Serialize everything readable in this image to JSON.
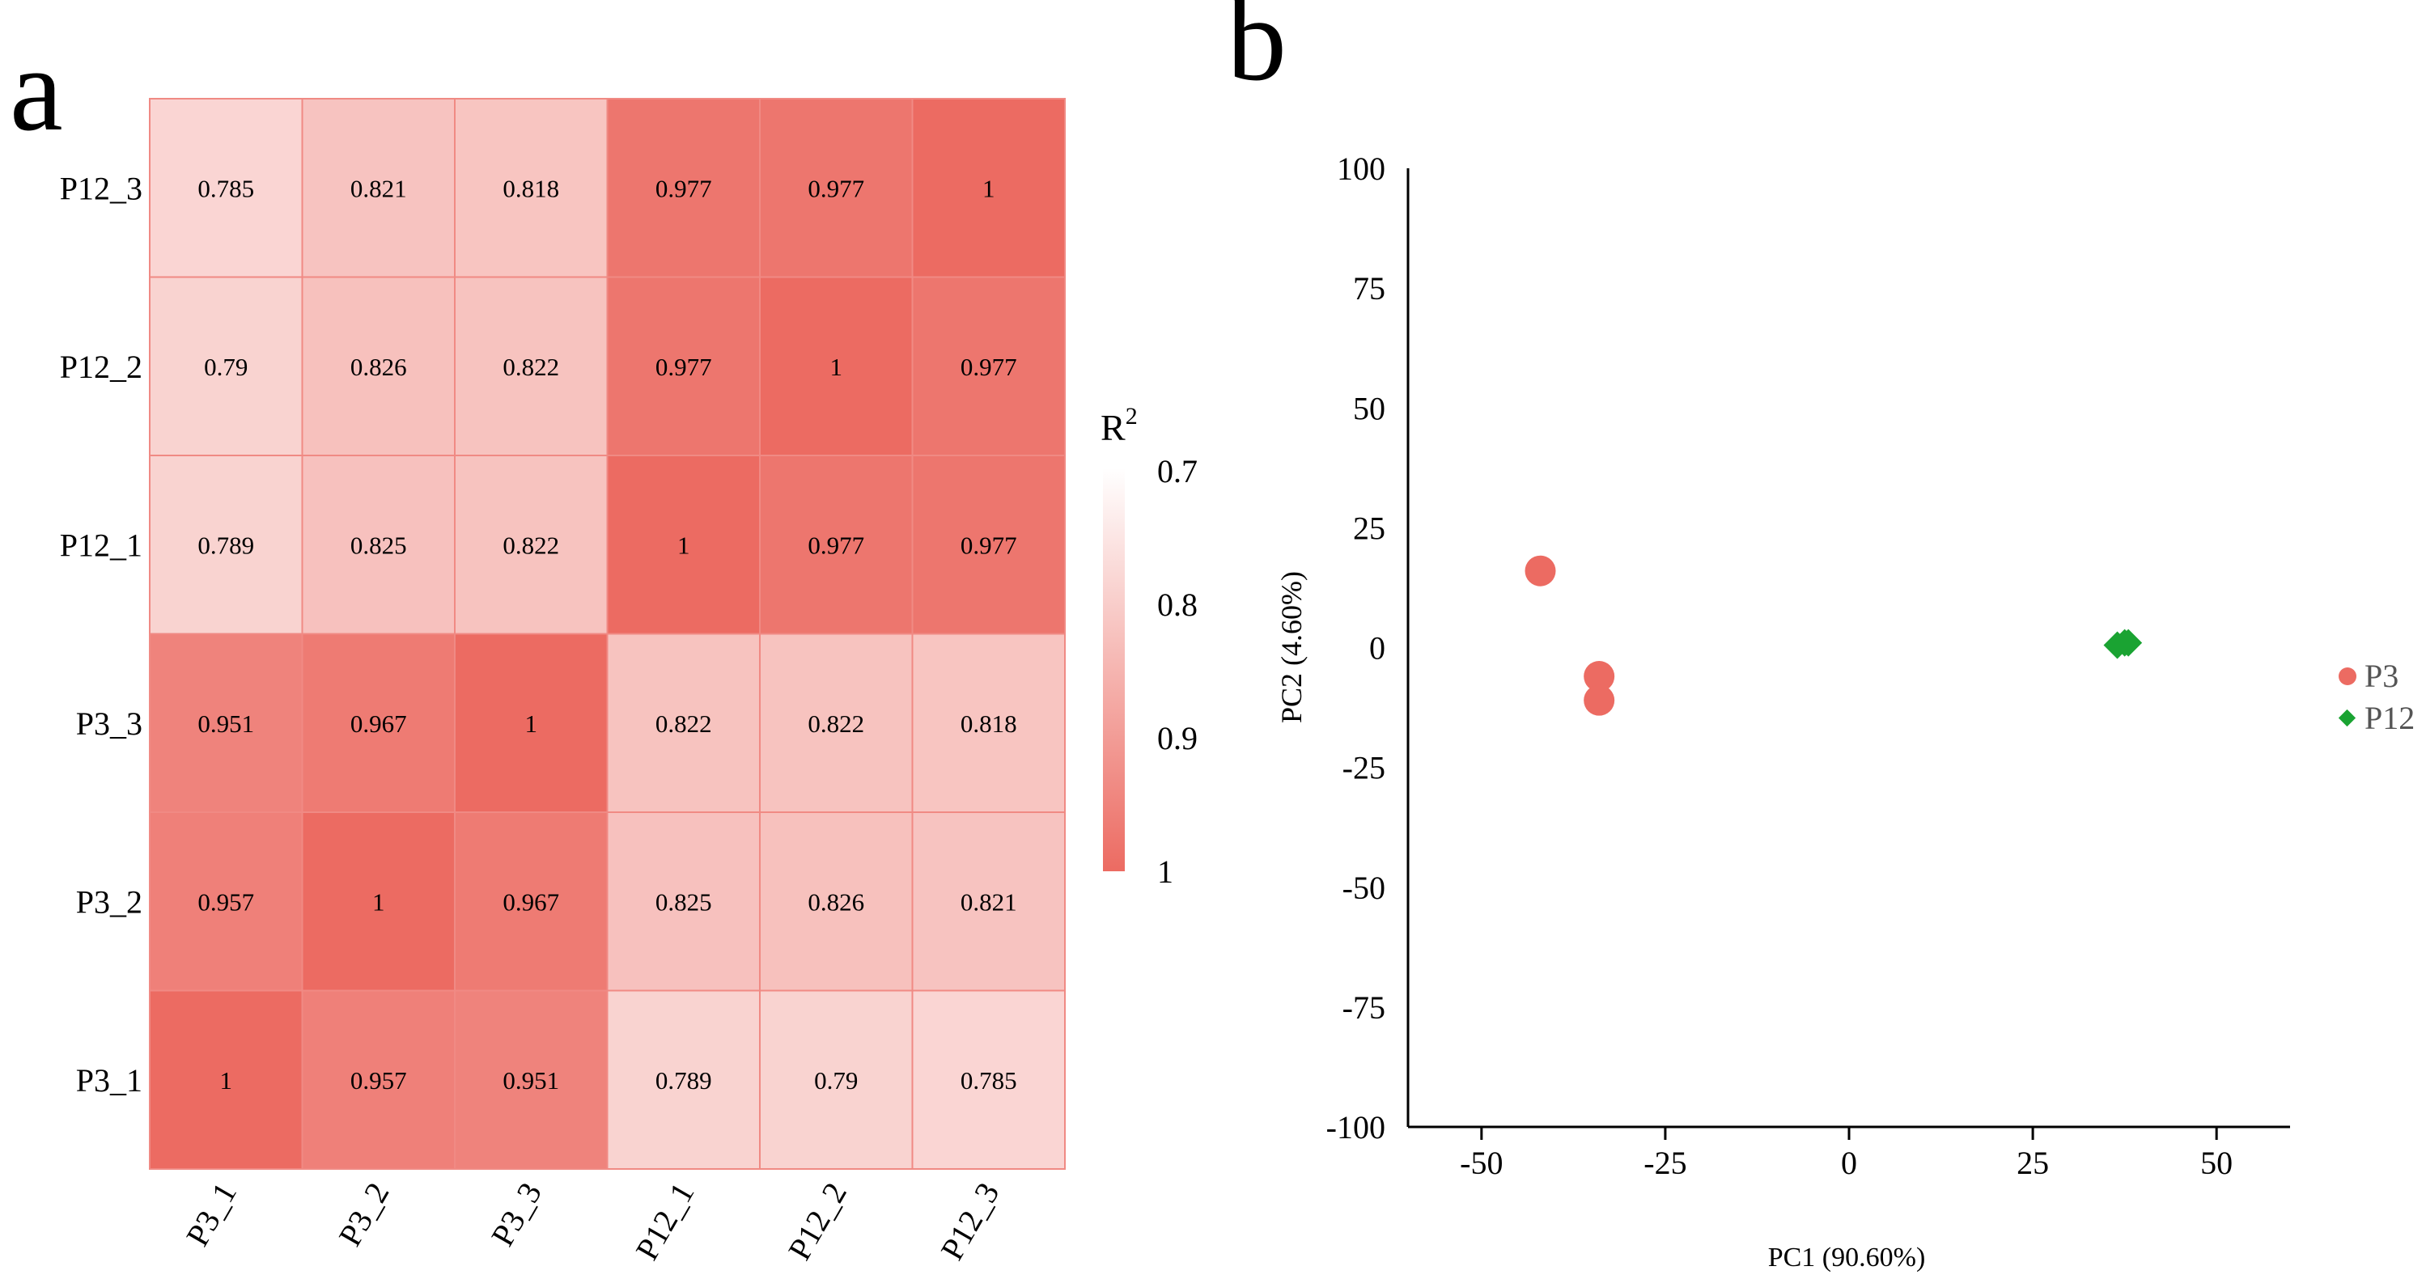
{
  "panels": {
    "a_label": "a",
    "b_label": "b"
  },
  "colors": {
    "low": "#ffffff",
    "high": "#ec6b62",
    "grid": "#f08a84",
    "p3": "#ec6b62",
    "p12": "#1aa332",
    "axis": "#000000"
  },
  "chart_data": [
    {
      "type": "heatmap",
      "title": "",
      "rows": [
        "P12_3",
        "P12_2",
        "P12_1",
        "P3_3",
        "P3_2",
        "P3_1"
      ],
      "cols": [
        "P3_1",
        "P3_2",
        "P3_3",
        "P12_1",
        "P12_2",
        "P12_3"
      ],
      "values": [
        [
          0.785,
          0.821,
          0.818,
          0.977,
          0.977,
          1
        ],
        [
          0.79,
          0.826,
          0.822,
          0.977,
          1,
          0.977
        ],
        [
          0.789,
          0.825,
          0.822,
          1,
          0.977,
          0.977
        ],
        [
          0.951,
          0.967,
          1,
          0.822,
          0.822,
          0.818
        ],
        [
          0.957,
          1,
          0.967,
          0.825,
          0.826,
          0.821
        ],
        [
          1,
          0.957,
          0.951,
          0.789,
          0.79,
          0.785
        ]
      ],
      "value_labels": [
        [
          "0.785",
          "0.821",
          "0.818",
          "0.977",
          "0.977",
          "1"
        ],
        [
          "0.79",
          "0.826",
          "0.822",
          "0.977",
          "1",
          "0.977"
        ],
        [
          "0.789",
          "0.825",
          "0.822",
          "1",
          "0.977",
          "0.977"
        ],
        [
          "0.951",
          "0.967",
          "1",
          "0.822",
          "0.822",
          "0.818"
        ],
        [
          "0.957",
          "1",
          "0.967",
          "0.825",
          "0.826",
          "0.821"
        ],
        [
          "1",
          "0.957",
          "0.951",
          "0.789",
          "0.79",
          "0.785"
        ]
      ],
      "colorbar": {
        "title_base": "R",
        "title_sup": "2",
        "range": [
          0.7,
          1
        ],
        "ticks": [
          0.7,
          0.8,
          0.9,
          1
        ],
        "tick_labels": [
          "0.7",
          "0.8",
          "0.9",
          "1"
        ]
      }
    },
    {
      "type": "scatter",
      "title": "",
      "xlabel": "PC1 (90.60%)",
      "ylabel": "PC2 (4.60%)",
      "xlim": [
        -60,
        60
      ],
      "ylim": [
        -100,
        100
      ],
      "xticks": [
        -50,
        -25,
        0,
        25,
        50
      ],
      "xtick_labels": [
        "-50",
        "-25",
        "0",
        "25",
        "50"
      ],
      "yticks": [
        100,
        75,
        50,
        25,
        0,
        -25,
        -50,
        -75,
        -100
      ],
      "ytick_labels": [
        "100",
        "75",
        "50",
        "25",
        "0",
        "-25",
        "-50",
        "-75",
        "-100"
      ],
      "series": [
        {
          "name": "P3",
          "marker": "circle",
          "points": [
            {
              "x": -42,
              "y": 16
            },
            {
              "x": -34,
              "y": -6
            },
            {
              "x": -34,
              "y": -11
            }
          ]
        },
        {
          "name": "P12",
          "marker": "diamond",
          "points": [
            {
              "x": 36.5,
              "y": 0.5
            },
            {
              "x": 37.5,
              "y": 1
            },
            {
              "x": 38,
              "y": 1
            }
          ]
        }
      ],
      "legend": {
        "position": "right",
        "labels": [
          "P3",
          "P12"
        ]
      }
    }
  ]
}
